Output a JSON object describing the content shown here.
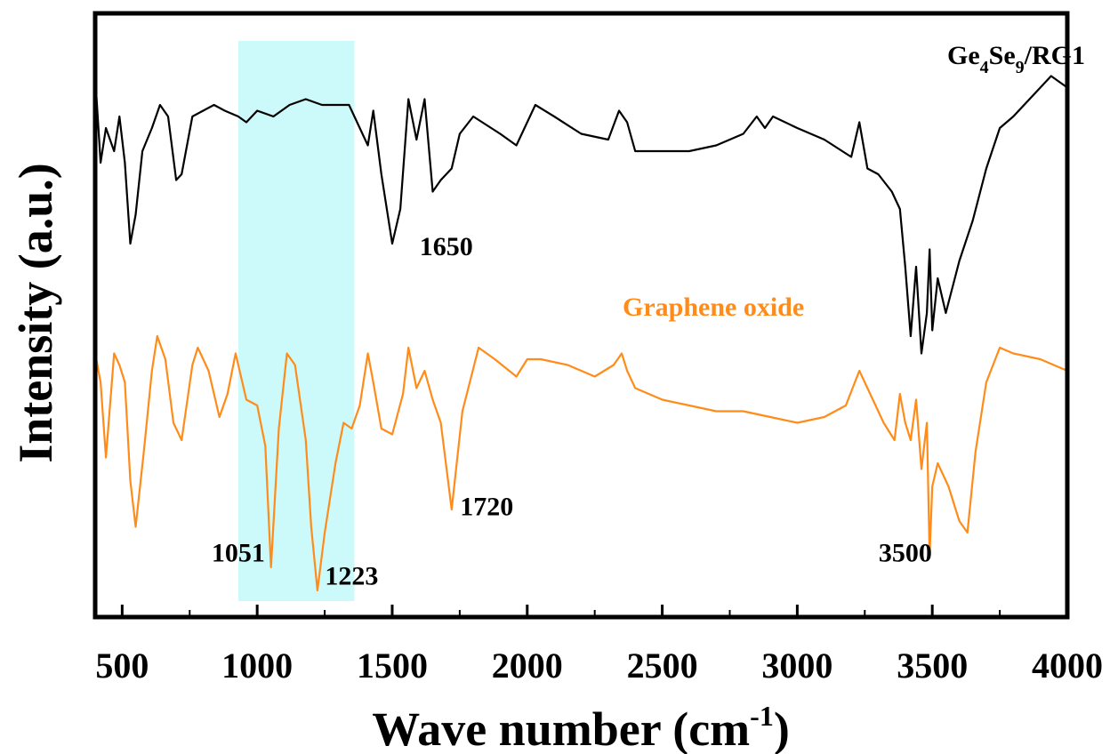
{
  "chart_data": {
    "type": "line",
    "title": "",
    "xlabel": "Wave number (cm",
    "xlabel_superscript": "-1",
    "xlabel_close": ")",
    "ylabel": "Intensity (a.u.)",
    "xlim": [
      400,
      4000
    ],
    "ylim": [
      0,
      1
    ],
    "y_ticks_shown": false,
    "x_ticks": [
      500,
      1000,
      1500,
      2000,
      2500,
      3000,
      3500,
      4000
    ],
    "x_tick_labels": [
      "500",
      "1000",
      "1500",
      "2000",
      "2500",
      "3000",
      "3500",
      "4000"
    ],
    "x_minor_step": 250,
    "grid": false,
    "highlight_region": {
      "x": [
        930,
        1360
      ],
      "color": "#ccfafa"
    },
    "series": [
      {
        "name": "Ge4Se9/RG1",
        "name_main": "Ge",
        "name_sub1": "4",
        "name_mid": "Se",
        "name_sub2": "9",
        "name_tail": "/RG1",
        "color": "#000000",
        "points": [
          [
            400,
            0.93
          ],
          [
            420,
            0.78
          ],
          [
            440,
            0.84
          ],
          [
            470,
            0.8
          ],
          [
            490,
            0.86
          ],
          [
            510,
            0.78
          ],
          [
            530,
            0.64
          ],
          [
            550,
            0.69
          ],
          [
            575,
            0.8
          ],
          [
            610,
            0.84
          ],
          [
            640,
            0.88
          ],
          [
            670,
            0.86
          ],
          [
            700,
            0.75
          ],
          [
            720,
            0.76
          ],
          [
            760,
            0.86
          ],
          [
            800,
            0.87
          ],
          [
            840,
            0.88
          ],
          [
            880,
            0.87
          ],
          [
            930,
            0.86
          ],
          [
            960,
            0.85
          ],
          [
            1000,
            0.87
          ],
          [
            1060,
            0.86
          ],
          [
            1120,
            0.88
          ],
          [
            1180,
            0.89
          ],
          [
            1240,
            0.88
          ],
          [
            1300,
            0.88
          ],
          [
            1340,
            0.88
          ],
          [
            1380,
            0.84
          ],
          [
            1410,
            0.81
          ],
          [
            1430,
            0.87
          ],
          [
            1460,
            0.76
          ],
          [
            1500,
            0.64
          ],
          [
            1530,
            0.7
          ],
          [
            1560,
            0.89
          ],
          [
            1590,
            0.82
          ],
          [
            1620,
            0.89
          ],
          [
            1650,
            0.73
          ],
          [
            1680,
            0.75
          ],
          [
            1720,
            0.77
          ],
          [
            1750,
            0.83
          ],
          [
            1800,
            0.86
          ],
          [
            1900,
            0.83
          ],
          [
            1960,
            0.81
          ],
          [
            2030,
            0.88
          ],
          [
            2100,
            0.86
          ],
          [
            2200,
            0.83
          ],
          [
            2300,
            0.82
          ],
          [
            2340,
            0.87
          ],
          [
            2370,
            0.85
          ],
          [
            2400,
            0.8
          ],
          [
            2500,
            0.8
          ],
          [
            2600,
            0.8
          ],
          [
            2700,
            0.81
          ],
          [
            2800,
            0.83
          ],
          [
            2850,
            0.86
          ],
          [
            2880,
            0.84
          ],
          [
            2910,
            0.86
          ],
          [
            3000,
            0.84
          ],
          [
            3100,
            0.82
          ],
          [
            3200,
            0.79
          ],
          [
            3230,
            0.85
          ],
          [
            3260,
            0.77
          ],
          [
            3300,
            0.76
          ],
          [
            3350,
            0.73
          ],
          [
            3380,
            0.7
          ],
          [
            3400,
            0.6
          ],
          [
            3420,
            0.48
          ],
          [
            3440,
            0.6
          ],
          [
            3460,
            0.45
          ],
          [
            3480,
            0.52
          ],
          [
            3490,
            0.63
          ],
          [
            3500,
            0.49
          ],
          [
            3520,
            0.58
          ],
          [
            3550,
            0.52
          ],
          [
            3600,
            0.61
          ],
          [
            3650,
            0.68
          ],
          [
            3700,
            0.77
          ],
          [
            3750,
            0.84
          ],
          [
            3800,
            0.86
          ],
          [
            3880,
            0.9
          ],
          [
            3940,
            0.93
          ],
          [
            4000,
            0.91
          ]
        ]
      },
      {
        "name": "Graphene oxide",
        "color": "#ff8c1a",
        "points": [
          [
            400,
            0.45
          ],
          [
            420,
            0.4
          ],
          [
            440,
            0.27
          ],
          [
            470,
            0.45
          ],
          [
            490,
            0.43
          ],
          [
            510,
            0.4
          ],
          [
            530,
            0.23
          ],
          [
            550,
            0.15
          ],
          [
            580,
            0.28
          ],
          [
            610,
            0.42
          ],
          [
            630,
            0.48
          ],
          [
            660,
            0.44
          ],
          [
            690,
            0.33
          ],
          [
            720,
            0.3
          ],
          [
            760,
            0.43
          ],
          [
            780,
            0.46
          ],
          [
            820,
            0.42
          ],
          [
            860,
            0.34
          ],
          [
            890,
            0.38
          ],
          [
            920,
            0.45
          ],
          [
            960,
            0.37
          ],
          [
            1000,
            0.36
          ],
          [
            1030,
            0.29
          ],
          [
            1051,
            0.08
          ],
          [
            1080,
            0.32
          ],
          [
            1110,
            0.45
          ],
          [
            1140,
            0.43
          ],
          [
            1180,
            0.3
          ],
          [
            1200,
            0.15
          ],
          [
            1223,
            0.04
          ],
          [
            1250,
            0.14
          ],
          [
            1290,
            0.26
          ],
          [
            1320,
            0.33
          ],
          [
            1350,
            0.32
          ],
          [
            1380,
            0.36
          ],
          [
            1410,
            0.45
          ],
          [
            1430,
            0.4
          ],
          [
            1460,
            0.32
          ],
          [
            1500,
            0.31
          ],
          [
            1540,
            0.38
          ],
          [
            1560,
            0.46
          ],
          [
            1590,
            0.39
          ],
          [
            1620,
            0.42
          ],
          [
            1650,
            0.37
          ],
          [
            1680,
            0.33
          ],
          [
            1720,
            0.18
          ],
          [
            1760,
            0.35
          ],
          [
            1820,
            0.46
          ],
          [
            1880,
            0.44
          ],
          [
            1960,
            0.41
          ],
          [
            2000,
            0.44
          ],
          [
            2050,
            0.44
          ],
          [
            2150,
            0.43
          ],
          [
            2250,
            0.41
          ],
          [
            2320,
            0.43
          ],
          [
            2350,
            0.45
          ],
          [
            2370,
            0.42
          ],
          [
            2400,
            0.39
          ],
          [
            2500,
            0.37
          ],
          [
            2600,
            0.36
          ],
          [
            2700,
            0.35
          ],
          [
            2800,
            0.35
          ],
          [
            2900,
            0.34
          ],
          [
            3000,
            0.33
          ],
          [
            3100,
            0.34
          ],
          [
            3180,
            0.36
          ],
          [
            3230,
            0.42
          ],
          [
            3280,
            0.37
          ],
          [
            3320,
            0.33
          ],
          [
            3360,
            0.3
          ],
          [
            3380,
            0.38
          ],
          [
            3400,
            0.33
          ],
          [
            3420,
            0.3
          ],
          [
            3440,
            0.37
          ],
          [
            3460,
            0.25
          ],
          [
            3480,
            0.33
          ],
          [
            3490,
            0.1
          ],
          [
            3500,
            0.22
          ],
          [
            3520,
            0.26
          ],
          [
            3560,
            0.22
          ],
          [
            3600,
            0.16
          ],
          [
            3630,
            0.14
          ],
          [
            3660,
            0.28
          ],
          [
            3700,
            0.4
          ],
          [
            3750,
            0.46
          ],
          [
            3800,
            0.45
          ],
          [
            3900,
            0.44
          ],
          [
            4000,
            0.42
          ]
        ]
      }
    ],
    "annotations": [
      {
        "text": "1650",
        "x": 1700,
        "y": 0.62,
        "color": "#000000"
      },
      {
        "text": "1720",
        "x": 1850,
        "y": 0.17,
        "color": "#000000"
      },
      {
        "text": "1051",
        "x": 930,
        "y": 0.09,
        "color": "#000000"
      },
      {
        "text": "1223",
        "x": 1350,
        "y": 0.05,
        "color": "#000000"
      },
      {
        "text": "3500",
        "x": 3400,
        "y": 0.09,
        "color": "#000000"
      }
    ]
  }
}
